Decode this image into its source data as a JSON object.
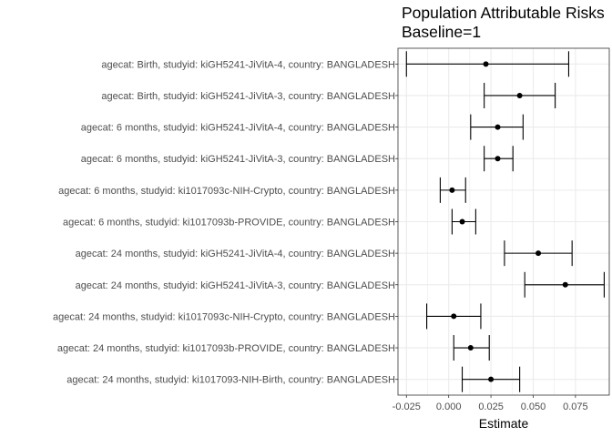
{
  "chart_data": {
    "type": "forest",
    "title": "Population Attributable Risks",
    "subtitle": "Baseline=1",
    "xlabel": "Estimate",
    "ylabel": "",
    "xlim": [
      -0.03,
      0.095
    ],
    "xticks": [
      -0.025,
      0.0,
      0.025,
      0.05,
      0.075
    ],
    "xtick_labels": [
      "-0.025",
      "0.000",
      "0.025",
      "0.050",
      "0.075"
    ],
    "grid": true,
    "colors": {
      "panel_bg": "#ffffff",
      "grid": "#ebebeb",
      "ink": "#000000",
      "axis_text": "#4d4d4d"
    },
    "rows": [
      {
        "label": "agecat: Birth, studyid: kiGH5241-JiVitA-4, country: BANGLADESH",
        "estimate": 0.022,
        "lower": -0.025,
        "upper": 0.071
      },
      {
        "label": "agecat: Birth, studyid: kiGH5241-JiVitA-3, country: BANGLADESH",
        "estimate": 0.042,
        "lower": 0.021,
        "upper": 0.063
      },
      {
        "label": "agecat: 6 months, studyid: kiGH5241-JiVitA-4, country: BANGLADESH",
        "estimate": 0.029,
        "lower": 0.013,
        "upper": 0.044
      },
      {
        "label": "agecat: 6 months, studyid: kiGH5241-JiVitA-3, country: BANGLADESH",
        "estimate": 0.029,
        "lower": 0.021,
        "upper": 0.038
      },
      {
        "label": "agecat: 6 months, studyid: ki1017093c-NIH-Crypto, country: BANGLADESH",
        "estimate": 0.002,
        "lower": -0.005,
        "upper": 0.01
      },
      {
        "label": "agecat: 6 months, studyid: ki1017093b-PROVIDE, country: BANGLADESH",
        "estimate": 0.008,
        "lower": 0.002,
        "upper": 0.016
      },
      {
        "label": "agecat: 24 months, studyid: kiGH5241-JiVitA-4, country: BANGLADESH",
        "estimate": 0.053,
        "lower": 0.033,
        "upper": 0.073
      },
      {
        "label": "agecat: 24 months, studyid: kiGH5241-JiVitA-3, country: BANGLADESH",
        "estimate": 0.069,
        "lower": 0.045,
        "upper": 0.092
      },
      {
        "label": "agecat: 24 months, studyid: ki1017093c-NIH-Crypto, country: BANGLADESH",
        "estimate": 0.003,
        "lower": -0.013,
        "upper": 0.019
      },
      {
        "label": "agecat: 24 months, studyid: ki1017093b-PROVIDE, country: BANGLADESH",
        "estimate": 0.013,
        "lower": 0.003,
        "upper": 0.024
      },
      {
        "label": "agecat: 24 months, studyid: ki1017093-NIH-Birth, country: BANGLADESH",
        "estimate": 0.025,
        "lower": 0.008,
        "upper": 0.042
      }
    ]
  }
}
